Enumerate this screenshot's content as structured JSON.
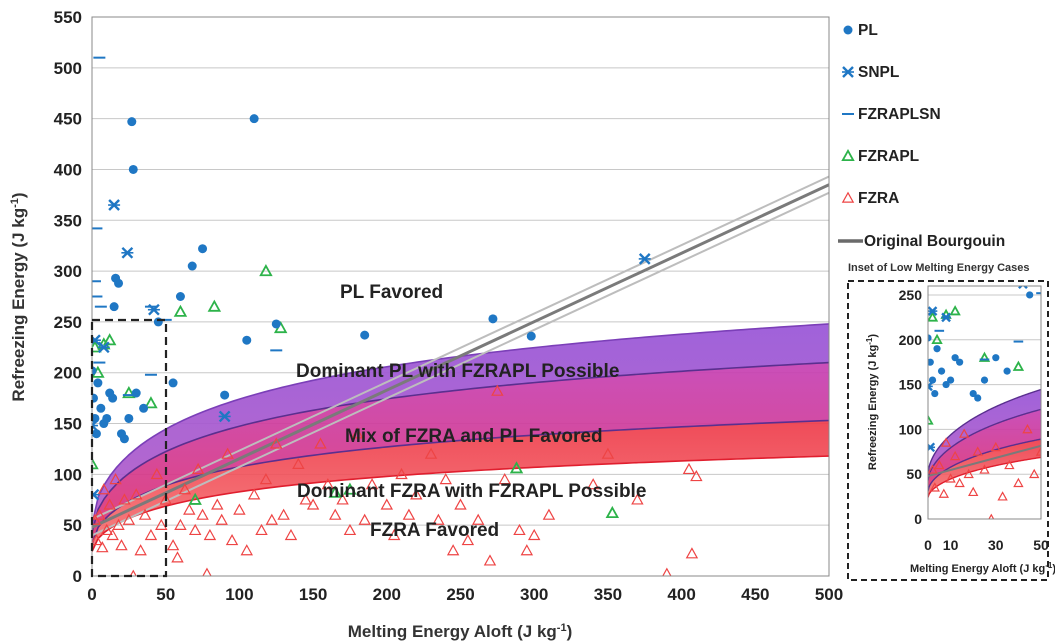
{
  "chart_data": {
    "type": "scatter",
    "xlabel": "Melting Energy Aloft (J kg",
    "xlabel_sup": "-1",
    "xlabel_end": ")",
    "ylabel": "Refreezing Energy (J kg",
    "ylabel_sup": "-1",
    "ylabel_end": ")",
    "xlim": [
      0,
      500
    ],
    "ylim": [
      0,
      550
    ],
    "xticks": [
      "0",
      "50",
      "100",
      "150",
      "200",
      "250",
      "300",
      "350",
      "400",
      "450",
      "500"
    ],
    "yticks": [
      "0",
      "50",
      "100",
      "150",
      "200",
      "250",
      "300",
      "350",
      "400",
      "450",
      "500",
      "550"
    ],
    "grid": "horizontal",
    "legend_position": "right",
    "colors": {
      "PL": "#1f77c4",
      "SNPL": "#1f77c4",
      "FZRAPLSN": "#1f77c4",
      "FZRAPL": "#2db34a",
      "FZRA": "#ee4444",
      "bourgouin": "#7a7a7a"
    },
    "legend": [
      {
        "label": "PL",
        "marker": "circle"
      },
      {
        "label": "SNPL",
        "marker": "star"
      },
      {
        "label": "FZRAPLSN",
        "marker": "dash"
      },
      {
        "label": "FZRAPL",
        "marker": "triangle"
      },
      {
        "label": "FZRA",
        "marker": "triangle-open"
      },
      {
        "label": "Original Bourgouin",
        "marker": "line"
      }
    ],
    "regions": {
      "labels": [
        "PL Favored",
        "Dominant PL with FZRAPL Possible",
        "Mix of FZRA and PL Favored",
        "Dominant FZRA with FZRAPL Possible",
        "FZRA Favored"
      ],
      "upper_curve_at_500": 248,
      "mid_upper_curve_at_500": 210,
      "mid_lower_curve_at_500": 153,
      "lower_curve_at_500": 118,
      "band_colors": [
        "#9b59d6",
        "#d8349a",
        "#ee3a55"
      ]
    },
    "bourgouin_line": {
      "x": [
        0,
        500
      ],
      "y": [
        48,
        385
      ],
      "spread": 8
    },
    "series": [
      {
        "name": "PL",
        "points": [
          [
            0,
            202
          ],
          [
            1,
            175
          ],
          [
            2,
            155
          ],
          [
            3,
            140
          ],
          [
            4,
            190
          ],
          [
            6,
            165
          ],
          [
            8,
            150
          ],
          [
            10,
            155
          ],
          [
            12,
            180
          ],
          [
            14,
            175
          ],
          [
            15,
            265
          ],
          [
            16,
            293
          ],
          [
            18,
            288
          ],
          [
            20,
            140
          ],
          [
            22,
            135
          ],
          [
            25,
            155
          ],
          [
            27,
            447
          ],
          [
            28,
            400
          ],
          [
            30,
            180
          ],
          [
            35,
            165
          ],
          [
            45,
            250
          ],
          [
            55,
            190
          ],
          [
            60,
            275
          ],
          [
            68,
            305
          ],
          [
            75,
            322
          ],
          [
            90,
            178
          ],
          [
            105,
            232
          ],
          [
            110,
            450
          ],
          [
            125,
            248
          ],
          [
            185,
            237
          ],
          [
            272,
            253
          ],
          [
            298,
            236
          ]
        ]
      },
      {
        "name": "SNPL",
        "points": [
          [
            0,
            148
          ],
          [
            1,
            80
          ],
          [
            2,
            232
          ],
          [
            8,
            225
          ],
          [
            15,
            365
          ],
          [
            24,
            318
          ],
          [
            42,
            262
          ],
          [
            90,
            157
          ],
          [
            375,
            312
          ]
        ]
      },
      {
        "name": "FZRAPLSN",
        "points": [
          [
            5,
            510
          ],
          [
            3,
            342
          ],
          [
            2,
            290
          ],
          [
            3,
            275
          ],
          [
            6,
            265
          ],
          [
            40,
            265
          ],
          [
            50,
            252
          ],
          [
            125,
            222
          ],
          [
            40,
            198
          ],
          [
            5,
            210
          ],
          [
            25,
            178
          ]
        ]
      },
      {
        "name": "FZRAPL",
        "points": [
          [
            0,
            110
          ],
          [
            2,
            225
          ],
          [
            4,
            200
          ],
          [
            8,
            228
          ],
          [
            12,
            232
          ],
          [
            25,
            180
          ],
          [
            40,
            170
          ],
          [
            60,
            260
          ],
          [
            70,
            75
          ],
          [
            83,
            265
          ],
          [
            118,
            300
          ],
          [
            128,
            244
          ],
          [
            165,
            82
          ],
          [
            175,
            85
          ],
          [
            288,
            106
          ],
          [
            353,
            62
          ]
        ]
      },
      {
        "name": "FZRA",
        "points": [
          [
            2,
            55
          ],
          [
            3,
            35
          ],
          [
            5,
            60
          ],
          [
            7,
            28
          ],
          [
            8,
            85
          ],
          [
            10,
            45
          ],
          [
            12,
            70
          ],
          [
            14,
            40
          ],
          [
            16,
            95
          ],
          [
            18,
            50
          ],
          [
            20,
            30
          ],
          [
            22,
            75
          ],
          [
            25,
            55
          ],
          [
            28,
            0
          ],
          [
            30,
            80
          ],
          [
            33,
            25
          ],
          [
            36,
            60
          ],
          [
            40,
            40
          ],
          [
            44,
            100
          ],
          [
            47,
            50
          ],
          [
            50,
            75
          ],
          [
            55,
            30
          ],
          [
            58,
            18
          ],
          [
            60,
            50
          ],
          [
            63,
            85
          ],
          [
            66,
            65
          ],
          [
            70,
            45
          ],
          [
            72,
            105
          ],
          [
            75,
            60
          ],
          [
            78,
            2
          ],
          [
            80,
            40
          ],
          [
            85,
            70
          ],
          [
            88,
            55
          ],
          [
            92,
            120
          ],
          [
            95,
            35
          ],
          [
            100,
            65
          ],
          [
            105,
            25
          ],
          [
            110,
            80
          ],
          [
            115,
            45
          ],
          [
            118,
            95
          ],
          [
            122,
            55
          ],
          [
            125,
            130
          ],
          [
            130,
            60
          ],
          [
            135,
            40
          ],
          [
            140,
            110
          ],
          [
            145,
            75
          ],
          [
            150,
            70
          ],
          [
            155,
            130
          ],
          [
            160,
            90
          ],
          [
            165,
            60
          ],
          [
            170,
            75
          ],
          [
            175,
            45
          ],
          [
            180,
            140
          ],
          [
            185,
            55
          ],
          [
            190,
            90
          ],
          [
            200,
            70
          ],
          [
            205,
            40
          ],
          [
            210,
            100
          ],
          [
            215,
            60
          ],
          [
            220,
            80
          ],
          [
            230,
            120
          ],
          [
            235,
            55
          ],
          [
            240,
            95
          ],
          [
            245,
            25
          ],
          [
            250,
            70
          ],
          [
            255,
            35
          ],
          [
            262,
            55
          ],
          [
            270,
            15
          ],
          [
            275,
            182
          ],
          [
            280,
            95
          ],
          [
            290,
            45
          ],
          [
            295,
            25
          ],
          [
            300,
            40
          ],
          [
            310,
            60
          ],
          [
            340,
            90
          ],
          [
            350,
            120
          ],
          [
            370,
            75
          ],
          [
            390,
            2
          ],
          [
            405,
            105
          ],
          [
            407,
            22
          ],
          [
            410,
            98
          ]
        ]
      }
    ],
    "inset": {
      "title": "Inset of Low Melting Energy Cases",
      "xlabel": "Melting Energy Aloft (J kg",
      "xlabel_sup": "-1",
      "xlabel_end": ")",
      "ylabel": "Refreezing Energy  (J kg",
      "ylabel_sup": "-1",
      "ylabel_end": ")",
      "xlim": [
        0,
        50
      ],
      "ylim": [
        0,
        260
      ],
      "xticks": [
        "0",
        "10",
        "30",
        "50"
      ],
      "xtick_values": [
        0,
        10,
        30,
        50
      ],
      "yticks": [
        "0",
        "50",
        "100",
        "150",
        "200",
        "250"
      ]
    }
  }
}
